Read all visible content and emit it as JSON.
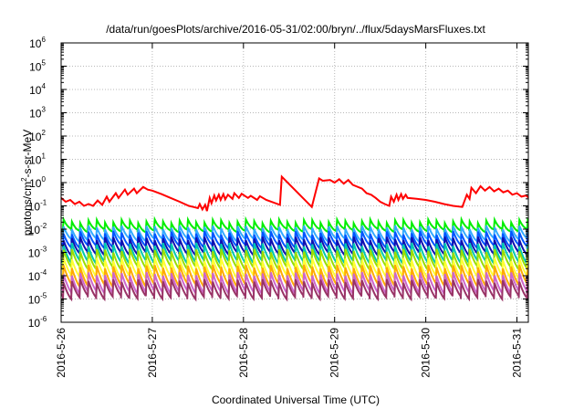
{
  "chart_data": {
    "type": "line",
    "title": "/data/run/goesPlots/archive/2016-05-31/02:00/bryn/../flux/5daysMarsFluxes.txt",
    "xlabel": "Coordinated Universal Time (UTC)",
    "ylabel": {
      "prefix": "protons/cm",
      "sup": "2",
      "suffix": "-s-sr-MeV"
    },
    "y_scale": "log",
    "ylim": [
      1e-06,
      1000000.0
    ],
    "y_ticks": [
      {
        "base": "10",
        "exp": "6",
        "value": 1000000.0
      },
      {
        "base": "10",
        "exp": "5",
        "value": 100000.0
      },
      {
        "base": "10",
        "exp": "4",
        "value": 10000.0
      },
      {
        "base": "10",
        "exp": "3",
        "value": 1000.0
      },
      {
        "base": "10",
        "exp": "2",
        "value": 100.0
      },
      {
        "base": "10",
        "exp": "1",
        "value": 10.0
      },
      {
        "base": "10",
        "exp": "0",
        "value": 1.0
      },
      {
        "base": "10",
        "exp": "-1",
        "value": 0.1
      },
      {
        "base": "10",
        "exp": "-2",
        "value": 0.01
      },
      {
        "base": "10",
        "exp": "-3",
        "value": 0.001
      },
      {
        "base": "10",
        "exp": "-4",
        "value": 0.0001
      },
      {
        "base": "10",
        "exp": "-5",
        "value": 1e-05
      },
      {
        "base": "10",
        "exp": "-6",
        "value": 1e-06
      }
    ],
    "x_ticks": [
      {
        "label": "2016-5-26",
        "value": 0
      },
      {
        "label": "2016-5-27",
        "value": 1
      },
      {
        "label": "2016-5-28",
        "value": 2
      },
      {
        "label": "2016-5-29",
        "value": 3
      },
      {
        "label": "2016-5-30",
        "value": 4
      },
      {
        "label": "2016-5-31",
        "value": 5
      }
    ],
    "xlim": [
      "2016-5-26 00:00",
      "2016-5-31 03:00"
    ],
    "grid": true,
    "legend": "none",
    "series": [
      {
        "color": "#ff0000",
        "x": [
          0.0,
          0.05,
          0.1,
          0.15,
          0.2,
          0.25,
          0.3,
          0.35,
          0.4,
          0.45,
          0.5,
          0.53,
          0.6,
          0.63,
          0.7,
          0.73,
          0.8,
          0.83,
          0.9,
          0.95,
          1.0,
          1.1,
          1.2,
          1.3,
          1.4,
          1.45,
          1.5,
          1.52,
          1.55,
          1.58,
          1.6,
          1.63,
          1.65,
          1.68,
          1.7,
          1.73,
          1.75,
          1.78,
          1.8,
          1.83,
          1.88,
          1.9,
          1.95,
          1.98,
          2.05,
          2.08,
          2.15,
          2.18,
          2.25,
          2.4,
          2.42,
          2.75,
          2.83,
          2.87,
          2.95,
          3.0,
          3.05,
          3.1,
          3.15,
          3.2,
          3.3,
          3.35,
          3.4,
          3.45,
          3.5,
          3.55,
          3.6,
          3.62,
          3.65,
          3.68,
          3.7,
          3.73,
          3.75,
          3.78,
          3.8,
          3.9,
          4.0,
          4.1,
          4.2,
          4.3,
          4.4,
          4.45,
          4.48,
          4.5,
          4.55,
          4.6,
          4.65,
          4.7,
          4.75,
          4.8,
          4.85,
          4.9,
          4.95,
          5.0,
          5.05,
          5.1,
          5.13
        ],
        "y": [
          0.22,
          0.15,
          0.18,
          0.12,
          0.15,
          0.1,
          0.12,
          0.1,
          0.17,
          0.11,
          0.25,
          0.15,
          0.35,
          0.22,
          0.5,
          0.3,
          0.55,
          0.35,
          0.65,
          0.5,
          0.45,
          0.32,
          0.22,
          0.15,
          0.1,
          0.09,
          0.08,
          0.12,
          0.07,
          0.11,
          0.06,
          0.22,
          0.13,
          0.28,
          0.17,
          0.3,
          0.18,
          0.32,
          0.19,
          0.3,
          0.2,
          0.35,
          0.22,
          0.33,
          0.22,
          0.27,
          0.18,
          0.26,
          0.18,
          0.11,
          1.8,
          0.09,
          1.5,
          1.2,
          1.3,
          1.0,
          1.4,
          0.9,
          1.3,
          0.8,
          0.55,
          0.35,
          0.3,
          0.22,
          0.15,
          0.12,
          0.1,
          0.25,
          0.15,
          0.3,
          0.18,
          0.32,
          0.2,
          0.3,
          0.22,
          0.2,
          0.18,
          0.15,
          0.12,
          0.1,
          0.09,
          0.3,
          0.2,
          0.6,
          0.35,
          0.7,
          0.45,
          0.65,
          0.42,
          0.55,
          0.38,
          0.45,
          0.3,
          0.35,
          0.25,
          0.28,
          0.22
        ]
      }
    ],
    "periodic_series": [
      {
        "color": "#00ee00",
        "peak": 0.022,
        "trough": 0.009
      },
      {
        "color": "#33aaff",
        "peak": 0.012,
        "trough": 0.0035
      },
      {
        "color": "#0055ff",
        "peak": 0.007,
        "trough": 0.0018
      },
      {
        "color": "#1010b0",
        "peak": 0.004,
        "trough": 0.0009
      },
      {
        "color": "#00c8b0",
        "peak": 0.0022,
        "trough": 0.0004
      },
      {
        "color": "#99dd00",
        "peak": 0.0012,
        "trough": 0.00022
      },
      {
        "color": "#ffff33",
        "peak": 0.0005,
        "trough": 9e-05
      },
      {
        "color": "#ffaa00",
        "peak": 0.00025,
        "trough": 4e-05
      },
      {
        "color": "#cc66cc",
        "peak": 0.00012,
        "trough": 2e-05
      },
      {
        "color": "#993366",
        "peak": 6e-05,
        "trough": 1.2e-05
      }
    ],
    "periodic_spikes_per_day": 11,
    "periodic_start_offset_day": 0.02
  }
}
